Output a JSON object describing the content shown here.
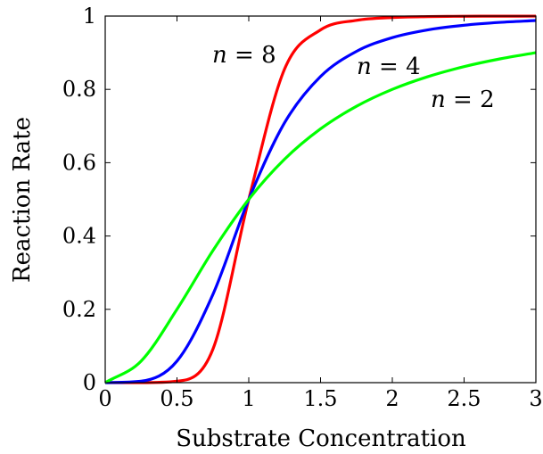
{
  "chart_data": {
    "type": "line",
    "title": "",
    "xlabel": "Substrate Concentration",
    "ylabel": "Reaction Rate",
    "xlim": [
      0,
      3
    ],
    "ylim": [
      0,
      1
    ],
    "x_ticks": [
      "0",
      "0.5",
      "1",
      "1.5",
      "2",
      "2.5",
      "3"
    ],
    "y_ticks": [
      "0",
      "0.2",
      "0.4",
      "0.6",
      "0.8",
      "1"
    ],
    "grid": false,
    "legend": "none",
    "x": [
      0,
      0.25,
      0.5,
      0.75,
      1,
      1.25,
      1.5,
      1.75,
      2,
      2.25,
      2.5,
      2.75,
      3
    ],
    "series": [
      {
        "color": "#ff0000",
        "label_var": "n",
        "label_eq": " = 8",
        "values": [
          0,
          1.53e-05,
          0.0039,
          0.0909,
          0.5,
          0.856,
          0.9623,
          0.9884,
          0.9961,
          0.9985,
          0.9994,
          0.9997,
          0.9998
        ]
      },
      {
        "color": "#0000ff",
        "label_var": "n",
        "label_eq": " = 4",
        "values": [
          0,
          0.0039,
          0.0588,
          0.2404,
          0.5,
          0.7093,
          0.8351,
          0.9036,
          0.9412,
          0.9625,
          0.975,
          0.9828,
          0.9878
        ]
      },
      {
        "color": "#00ff00",
        "label_var": "n",
        "label_eq": " = 2",
        "values": [
          0,
          0.0588,
          0.2,
          0.36,
          0.5,
          0.6098,
          0.6923,
          0.7538,
          0.8,
          0.835,
          0.8621,
          0.8832,
          0.9
        ]
      }
    ]
  }
}
